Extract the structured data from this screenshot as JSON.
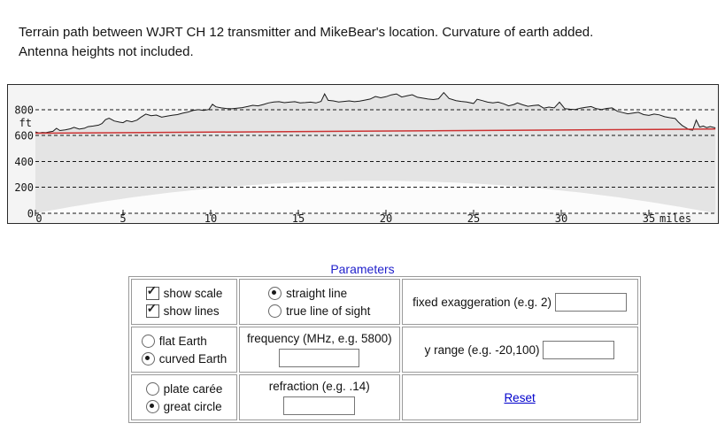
{
  "header": {
    "line1": "Terrain path between WJRT CH 12 transmitter and MikeBear's location. Curvature of earth added.",
    "line2": "Antenna heights not included."
  },
  "chart_data": {
    "type": "area",
    "title": "Terrain elevation profile between WJRT CH 12 transmitter and MikeBear's location",
    "xlabel": "miles",
    "ylabel": "ft",
    "xlim": [
      0,
      38.8
    ],
    "ylim": [
      0,
      980
    ],
    "xticks": [
      0,
      5,
      10,
      15,
      20,
      25,
      30,
      35
    ],
    "yticks": [
      0,
      200,
      400,
      600,
      800
    ],
    "x_unit_label": "miles",
    "y_unit_label": "ft",
    "grid": "horizontal-dashed",
    "legend": "none",
    "colors": {
      "terrain_line": "#1a1a1a",
      "terrain_fill": "#e4e4e4",
      "sky_background": "#f4f4f4",
      "below_curvature_fill": "#fcfcfc",
      "sight_line": "#cc3333"
    },
    "series": [
      {
        "name": "terrain_elevation_ft",
        "points": [
          [
            0,
            628
          ],
          [
            0.2,
            620
          ],
          [
            0.4,
            624
          ],
          [
            0.6,
            622
          ],
          [
            0.8,
            628
          ],
          [
            1.0,
            632
          ],
          [
            1.2,
            655
          ],
          [
            1.4,
            638
          ],
          [
            1.7,
            644
          ],
          [
            2.0,
            652
          ],
          [
            2.2,
            663
          ],
          [
            2.5,
            649
          ],
          [
            2.8,
            656
          ],
          [
            3.0,
            668
          ],
          [
            3.3,
            673
          ],
          [
            3.6,
            680
          ],
          [
            3.8,
            692
          ],
          [
            4.0,
            722
          ],
          [
            4.2,
            734
          ],
          [
            4.5,
            712
          ],
          [
            4.8,
            703
          ],
          [
            5.0,
            699
          ],
          [
            5.2,
            715
          ],
          [
            5.5,
            706
          ],
          [
            5.8,
            719
          ],
          [
            6.0,
            739
          ],
          [
            6.3,
            765
          ],
          [
            6.6,
            753
          ],
          [
            6.9,
            758
          ],
          [
            7.2,
            741
          ],
          [
            7.5,
            749
          ],
          [
            7.8,
            756
          ],
          [
            8.1,
            761
          ],
          [
            8.4,
            772
          ],
          [
            8.7,
            781
          ],
          [
            9.0,
            793
          ],
          [
            9.3,
            799
          ],
          [
            9.6,
            794
          ],
          [
            9.9,
            801
          ],
          [
            10.1,
            841
          ],
          [
            10.3,
            821
          ],
          [
            10.6,
            813
          ],
          [
            10.9,
            808
          ],
          [
            11.2,
            806
          ],
          [
            11.5,
            811
          ],
          [
            11.8,
            815
          ],
          [
            12.1,
            823
          ],
          [
            12.4,
            833
          ],
          [
            12.7,
            829
          ],
          [
            13.0,
            839
          ],
          [
            13.3,
            851
          ],
          [
            13.6,
            859
          ],
          [
            13.9,
            861
          ],
          [
            14.2,
            853
          ],
          [
            14.5,
            857
          ],
          [
            14.8,
            861
          ],
          [
            15.1,
            852
          ],
          [
            15.4,
            854
          ],
          [
            15.7,
            857
          ],
          [
            16.0,
            851
          ],
          [
            16.3,
            863
          ],
          [
            16.5,
            921
          ],
          [
            16.7,
            871
          ],
          [
            17.0,
            867
          ],
          [
            17.3,
            859
          ],
          [
            17.6,
            863
          ],
          [
            17.9,
            867
          ],
          [
            18.2,
            861
          ],
          [
            18.5,
            865
          ],
          [
            18.8,
            873
          ],
          [
            19.1,
            881
          ],
          [
            19.4,
            901
          ],
          [
            19.7,
            891
          ],
          [
            20.0,
            899
          ],
          [
            20.3,
            913
          ],
          [
            20.6,
            921
          ],
          [
            20.9,
            897
          ],
          [
            21.2,
            906
          ],
          [
            21.5,
            915
          ],
          [
            21.8,
            895
          ],
          [
            22.1,
            888
          ],
          [
            22.4,
            881
          ],
          [
            22.7,
            877
          ],
          [
            23.0,
            883
          ],
          [
            23.3,
            931
          ],
          [
            23.6,
            885
          ],
          [
            24.0,
            869
          ],
          [
            24.3,
            863
          ],
          [
            24.6,
            859
          ],
          [
            25.0,
            847
          ],
          [
            25.2,
            879
          ],
          [
            25.5,
            869
          ],
          [
            25.8,
            857
          ],
          [
            26.1,
            851
          ],
          [
            26.4,
            857
          ],
          [
            26.7,
            845
          ],
          [
            27.0,
            829
          ],
          [
            27.3,
            839
          ],
          [
            27.5,
            851
          ],
          [
            27.8,
            837
          ],
          [
            28.1,
            825
          ],
          [
            28.4,
            831
          ],
          [
            28.7,
            835
          ],
          [
            29.0,
            811
          ],
          [
            29.3,
            819
          ],
          [
            29.6,
            813
          ],
          [
            29.9,
            857
          ],
          [
            30.2,
            807
          ],
          [
            30.5,
            803
          ],
          [
            30.8,
            801
          ],
          [
            31.1,
            811
          ],
          [
            31.4,
            817
          ],
          [
            31.7,
            823
          ],
          [
            32.0,
            807
          ],
          [
            32.3,
            801
          ],
          [
            32.6,
            809
          ],
          [
            32.9,
            813
          ],
          [
            33.2,
            787
          ],
          [
            33.5,
            777
          ],
          [
            33.8,
            767
          ],
          [
            34.1,
            773
          ],
          [
            34.4,
            779
          ],
          [
            34.7,
            761
          ],
          [
            35.0,
            755
          ],
          [
            35.3,
            765
          ],
          [
            35.6,
            759
          ],
          [
            35.9,
            745
          ],
          [
            36.2,
            737
          ],
          [
            36.5,
            731
          ],
          [
            36.7,
            701
          ],
          [
            36.9,
            677
          ],
          [
            37.1,
            661
          ],
          [
            37.3,
            645
          ],
          [
            37.5,
            641
          ],
          [
            37.7,
            719
          ],
          [
            37.9,
            665
          ],
          [
            38.1,
            673
          ],
          [
            38.3,
            661
          ],
          [
            38.5,
            669
          ],
          [
            38.8,
            659
          ]
        ]
      },
      {
        "name": "straight_sight_line_ft",
        "points": [
          [
            0,
            618
          ],
          [
            38.8,
            650
          ]
        ]
      },
      {
        "name": "earth_curvature_bulge_ft",
        "formula": "bulge(d) = d*(D-d)/1.5",
        "D_miles": 38.8,
        "max_ft": 251
      }
    ]
  },
  "parameters": {
    "heading": "Parameters",
    "show_scale": {
      "label": "show scale",
      "checked": true
    },
    "show_lines": {
      "label": "show lines",
      "checked": true
    },
    "line_mode": {
      "straight": {
        "label": "straight line",
        "selected": true
      },
      "true_los": {
        "label": "true line of sight",
        "selected": false
      }
    },
    "earth_model": {
      "flat": {
        "label": "flat Earth",
        "selected": false
      },
      "curved": {
        "label": "curved Earth",
        "selected": true
      }
    },
    "projection": {
      "plate": {
        "label": "plate carée",
        "selected": false
      },
      "great": {
        "label": "great circle",
        "selected": true
      }
    },
    "fixed_exaggeration": {
      "label": "fixed exaggeration (e.g. 2)",
      "value": ""
    },
    "frequency": {
      "label": "frequency (MHz, e.g. 5800)",
      "value": ""
    },
    "y_range": {
      "label": "y range (e.g. -20,100)",
      "value": ""
    },
    "refraction": {
      "label": "refraction (e.g. .14)",
      "value": ""
    },
    "reset_label": "Reset"
  }
}
